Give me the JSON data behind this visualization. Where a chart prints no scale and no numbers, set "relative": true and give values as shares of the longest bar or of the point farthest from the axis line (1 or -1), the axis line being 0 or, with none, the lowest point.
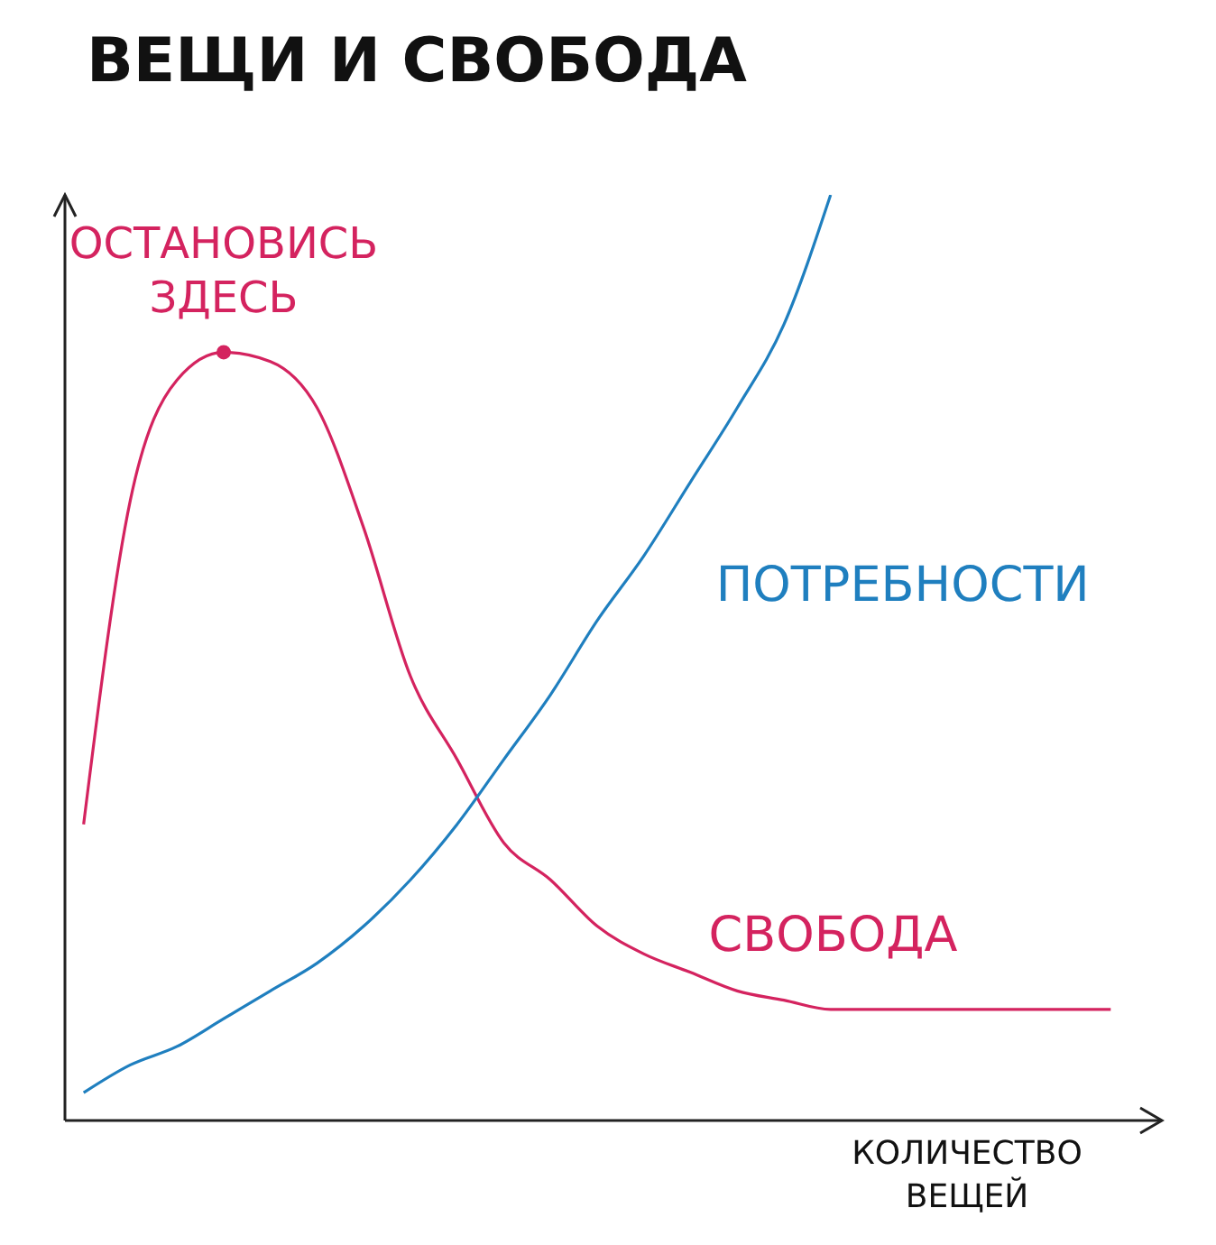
{
  "chart_data": {
    "type": "line",
    "title": "ВЕЩИ И СВОБОДА",
    "xlabel": "КОЛИЧЕСТВО ВЕЩЕЙ",
    "relative": true,
    "legend": false,
    "grid": false,
    "marker": "none",
    "line_style": "solid",
    "categories": [
      null,
      null,
      null,
      null,
      null,
      null,
      null,
      null,
      null,
      null,
      null,
      null,
      null,
      null,
      null,
      null,
      null,
      null,
      null,
      null,
      null,
      null,
      null
    ],
    "series": [
      {
        "name": "СВОБОДА",
        "color": "#d4235f",
        "values": [
          0.32,
          0.67,
          0.8,
          0.83,
          0.82,
          0.77,
          0.64,
          0.48,
          0.39,
          0.3,
          0.26,
          0.21,
          0.18,
          0.16,
          0.14,
          0.13,
          0.12,
          0.12,
          0.12,
          0.12,
          0.12,
          0.12,
          0.12
        ]
      },
      {
        "name": "ПОТРЕБНОСТИ",
        "color": "#1f7fbf",
        "values": [
          0.03,
          0.06,
          0.08,
          0.11,
          0.14,
          0.17,
          0.21,
          0.26,
          0.32,
          0.39,
          0.46,
          0.54,
          0.61,
          0.69,
          0.77,
          0.86,
          1,
          null,
          null,
          null,
          null,
          null,
          null
        ]
      }
    ],
    "annotations": [
      {
        "text": "ОСТАНОВИСЬ ЗДЕСЬ",
        "y": 0.83
      }
    ]
  }
}
